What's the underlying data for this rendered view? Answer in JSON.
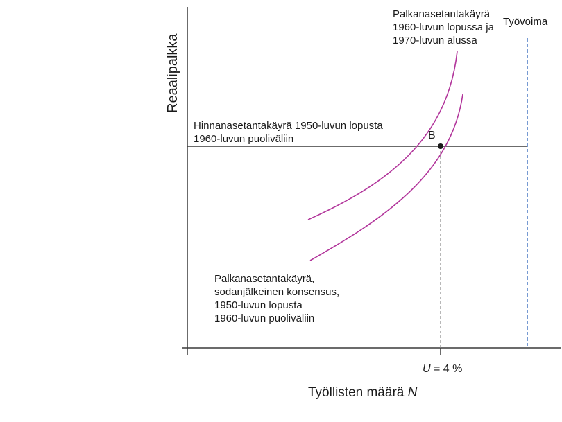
{
  "axes": {
    "x_title": "Työllisten määrä",
    "x_title_var": "N",
    "y_title": "Reaalipalkka",
    "x_tick_var": "U",
    "x_tick_rest": " = 4 %"
  },
  "curves": {
    "wage_setting_late60s": [
      "Palkanasetantakäyrä",
      "1960-luvun lopussa ja",
      "1970-luvun alussa"
    ],
    "wage_setting_postwar": [
      "Palkanasetantakäyrä,",
      "sodanjälkeinen konsensus,",
      "1950-luvun lopusta",
      "1960-luvun puoliväliin"
    ],
    "price_setting": [
      "Hinnanasetantakäyrä 1950-luvun lopusta",
      "1960-luvun puoliväliin"
    ],
    "labour_force": "Työvoima"
  },
  "points": {
    "B": "B"
  },
  "colors": {
    "wage_curve": "#b2359b",
    "labour_force_line": "#4a78c4",
    "axis": "#3a3a3a",
    "guide": "#888888"
  },
  "chart_data": {
    "type": "line",
    "xlabel": "Työllisten määrä N",
    "ylabel": "Reaalipalkka",
    "series": [
      {
        "name": "Hinnanasetantakäyrä 1950-luvun lopusta 1960-luvun puoliväliin",
        "kind": "horizontal line"
      },
      {
        "name": "Palkanasetantakäyrä, sodanjälkeinen konsensus, 1950-luvun lopusta 1960-luvun puoliväliin",
        "kind": "upward-sloping curve"
      },
      {
        "name": "Palkanasetantakäyrä 1960-luvun lopussa ja 1970-luvun alussa",
        "kind": "upward-sloping curve, above the post-war curve"
      },
      {
        "name": "Työvoima",
        "kind": "vertical dashed line"
      }
    ],
    "points": [
      {
        "name": "B",
        "x_label": "U = 4 %"
      }
    ]
  }
}
